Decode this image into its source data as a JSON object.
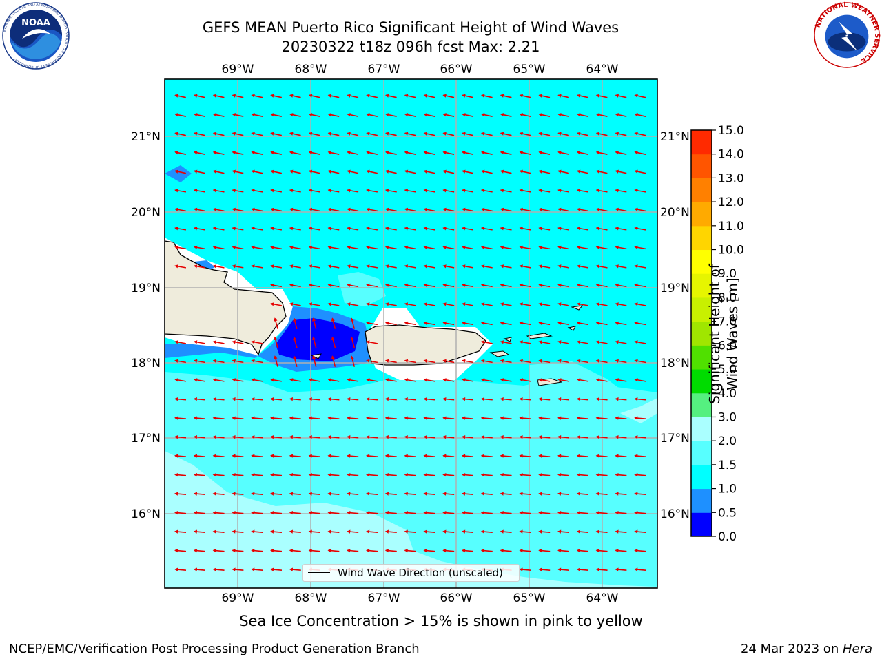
{
  "header": {
    "title_line1": "GEFS MEAN Puerto Rico Significant Height of Wind Waves",
    "title_line2": "20230322 t18z 096h fcst   Max: 2.21"
  },
  "logos": {
    "noaa": "NOAA",
    "noaa_ring_text": "NATIONAL OCEANIC AND ATMOSPHERIC ADMINISTRATION · U.S. DEPARTMENT OF COMMERCE",
    "nws_ring_text": "NATIONAL WEATHER SERVICE"
  },
  "map": {
    "lon_labels": [
      "69°W",
      "68°W",
      "67°W",
      "66°W",
      "65°W",
      "64°W"
    ],
    "lat_labels": [
      "21°N",
      "20°N",
      "19°N",
      "18°N",
      "17°N",
      "16°N"
    ],
    "legend_label": "Wind Wave Direction (unscaled)",
    "arrow_color": "#e60000",
    "land_color": "#efecdc"
  },
  "colorbar": {
    "title": "Significant Height of Wind Waves [m]",
    "ticks": [
      "0.0",
      "0.5",
      "1.0",
      "1.5",
      "2.0",
      "3.0",
      "4.0",
      "5.0",
      "6.0",
      "7.0",
      "8.0",
      "9.0",
      "10.0",
      "11.0",
      "12.0",
      "13.0",
      "14.0",
      "15.0"
    ],
    "colors": [
      "#0000ff",
      "#1e90ff",
      "#00ffff",
      "#57ffff",
      "#aaffff",
      "#55f080",
      "#00dc00",
      "#50e000",
      "#a0e600",
      "#c8f000",
      "#e6f500",
      "#ffff00",
      "#ffd500",
      "#ffaa00",
      "#ff8000",
      "#ff5500",
      "#ff2a00"
    ]
  },
  "note": "Sea Ice Concentration > 15% is shown in pink to yellow",
  "footer": {
    "left": "NCEP/EMC/Verification Post Processing Product Generation Branch",
    "right_date": "24 Mar 2023 on ",
    "right_host": "Hera"
  }
}
